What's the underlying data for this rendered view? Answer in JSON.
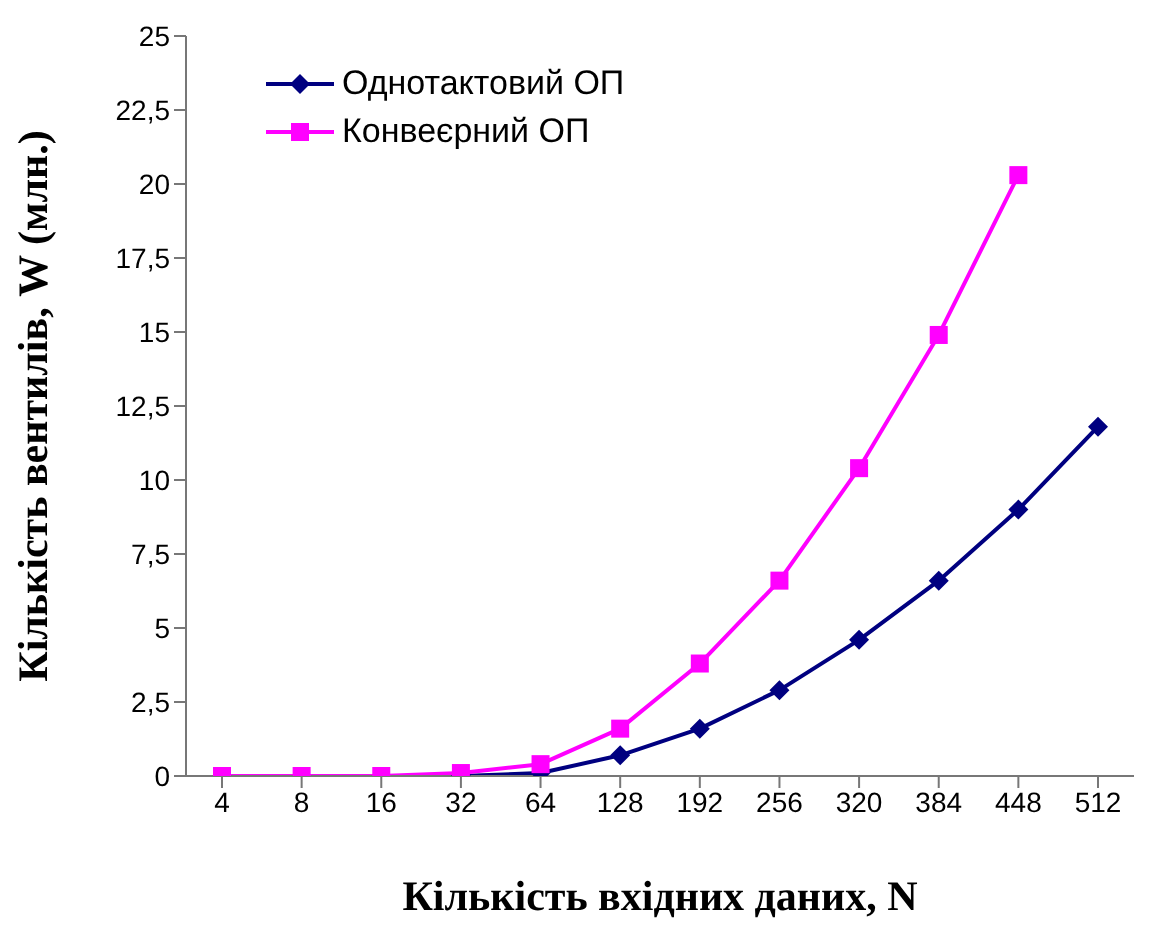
{
  "chart_data": {
    "type": "line",
    "xlabel": "Кількість вхідних даних, N",
    "ylabel": "Кількість вентилів, W  (млн.)",
    "categories": [
      "4",
      "8",
      "16",
      "32",
      "64",
      "128",
      "192",
      "256",
      "320",
      "384",
      "448",
      "512"
    ],
    "series": [
      {
        "name": "Однотактовий ОП",
        "color": "#000080",
        "marker": "diamond",
        "values": [
          null,
          null,
          null,
          0,
          0.1,
          0.7,
          1.6,
          2.9,
          4.6,
          6.6,
          9.0,
          11.8
        ]
      },
      {
        "name": "Конвеєрний ОП",
        "color": "#ff00ff",
        "marker": "square",
        "values": [
          0,
          0,
          0,
          0.1,
          0.4,
          1.6,
          3.8,
          6.6,
          10.4,
          14.9,
          20.3,
          null
        ]
      }
    ],
    "ylim": [
      0,
      25
    ],
    "yticks": [
      0,
      {
        "value": 2.5,
        "label": "2,5"
      },
      5,
      {
        "value": 7.5,
        "label": "7,5"
      },
      10,
      {
        "value": 12.5,
        "label": "12,5"
      },
      15,
      {
        "value": 17.5,
        "label": "17,5"
      },
      20,
      {
        "value": 22.5,
        "label": "22,5"
      },
      25
    ],
    "grid": false,
    "legend": "top left"
  }
}
